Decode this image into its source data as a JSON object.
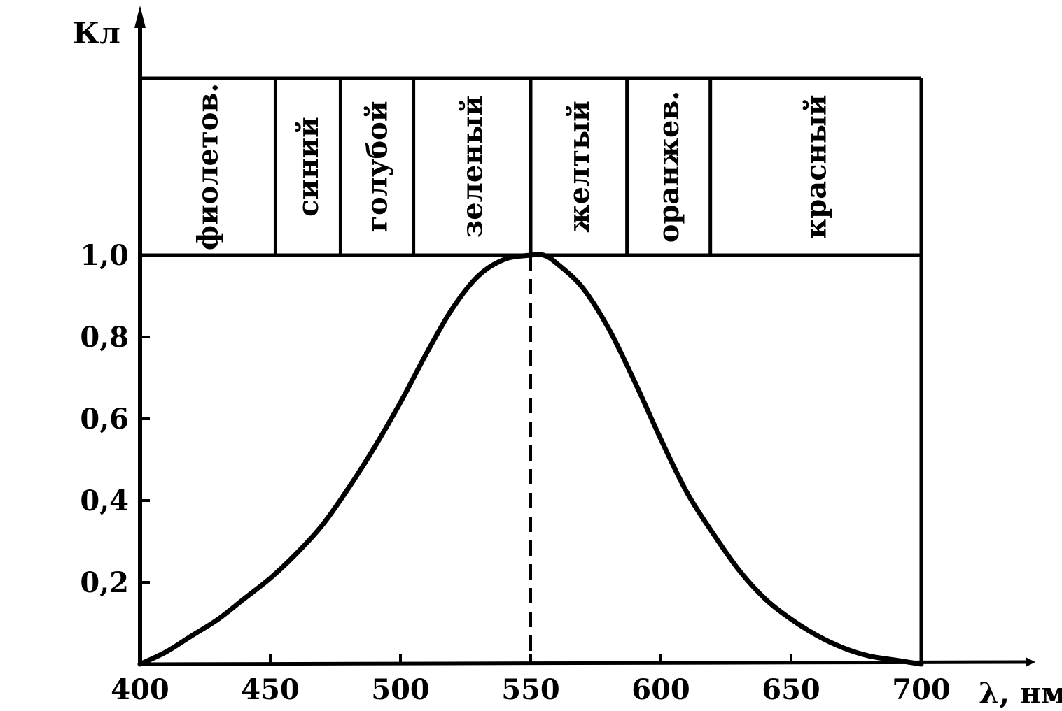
{
  "chart_data": {
    "type": "line",
    "title": "",
    "ylabel": "Кл",
    "xlabel": "λ, нм",
    "xlim": [
      400,
      700
    ],
    "ylim": [
      0,
      1.0
    ],
    "x_ticks": [
      {
        "value": 400,
        "label": "400"
      },
      {
        "value": 450,
        "label": "450"
      },
      {
        "value": 500,
        "label": "500"
      },
      {
        "value": 550,
        "label": "550"
      },
      {
        "value": 600,
        "label": "600"
      },
      {
        "value": 650,
        "label": "650"
      },
      {
        "value": 700,
        "label": "700"
      }
    ],
    "y_ticks": [
      {
        "value": 0.2,
        "label": "0,2"
      },
      {
        "value": 0.4,
        "label": "0,4"
      },
      {
        "value": 0.6,
        "label": "0,6"
      },
      {
        "value": 0.8,
        "label": "0,8"
      },
      {
        "value": 1.0,
        "label": "1,0"
      }
    ],
    "series": [
      {
        "x": [
          400,
          410,
          420,
          430,
          440,
          450,
          460,
          470,
          480,
          490,
          500,
          510,
          520,
          530,
          540,
          550,
          555,
          560,
          570,
          580,
          590,
          600,
          610,
          620,
          630,
          640,
          650,
          660,
          670,
          680,
          690,
          700
        ],
        "y": [
          0.0,
          0.03,
          0.07,
          0.11,
          0.16,
          0.21,
          0.27,
          0.34,
          0.43,
          0.53,
          0.64,
          0.76,
          0.87,
          0.95,
          0.99,
          1.0,
          1.0,
          0.98,
          0.92,
          0.82,
          0.69,
          0.55,
          0.42,
          0.32,
          0.23,
          0.16,
          0.11,
          0.07,
          0.04,
          0.02,
          0.01,
          0.0
        ]
      }
    ],
    "reference_line": {
      "x": 550
    },
    "color_bands": [
      {
        "label": "фиолетов.",
        "x_start": 400,
        "x_end": 452
      },
      {
        "label": "синий",
        "x_start": 452,
        "x_end": 477
      },
      {
        "label": "голубой",
        "x_start": 477,
        "x_end": 505
      },
      {
        "label": "зеленый",
        "x_start": 505,
        "x_end": 550
      },
      {
        "label": "желтый",
        "x_start": 550,
        "x_end": 587
      },
      {
        "label": "оранжев.",
        "x_start": 587,
        "x_end": 619
      },
      {
        "label": "красный",
        "x_start": 619,
        "x_end": 700
      }
    ],
    "grid": false,
    "legend": "none"
  }
}
